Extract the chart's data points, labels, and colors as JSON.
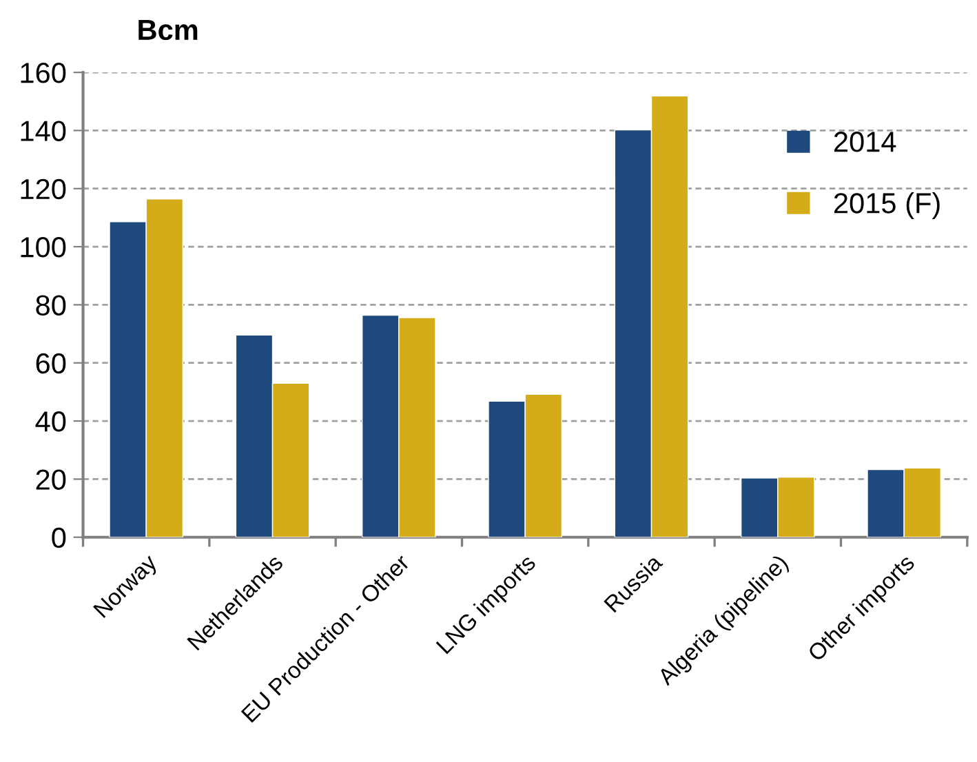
{
  "chart_data": {
    "type": "bar",
    "ylabel": "Bcm",
    "categories": [
      "Norway",
      "Netherlands",
      "EU Production - Other",
      "LNG imports",
      "Russia",
      "Algeria (pipeline)",
      "Other imports"
    ],
    "series": [
      {
        "name": "2014",
        "color": "#1f497d",
        "values": [
          108.6,
          69.6,
          76.4,
          46.8,
          140.2,
          20.4,
          23.3
        ]
      },
      {
        "name": "2015 (F)",
        "color": "#d4ac1a",
        "values": [
          116.4,
          53.0,
          75.6,
          49.2,
          151.9,
          20.7,
          23.8
        ]
      }
    ],
    "ylim": [
      0,
      160
    ],
    "yticks": [
      0,
      20,
      40,
      60,
      80,
      100,
      120,
      140,
      160
    ],
    "grid": "y",
    "legend": "top right"
  }
}
